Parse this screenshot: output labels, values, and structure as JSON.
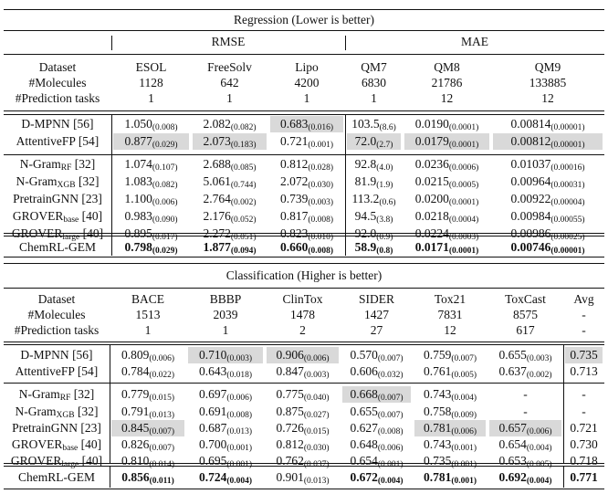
{
  "regression": {
    "title": "Regression (Lower is better)",
    "groups": [
      "RMSE",
      "MAE"
    ],
    "header_labels": [
      "Dataset",
      "#Molecules",
      "#Prediction tasks"
    ],
    "datasets": [
      {
        "name": "ESOL",
        "molecules": "1128",
        "tasks": "1"
      },
      {
        "name": "FreeSolv",
        "molecules": "642",
        "tasks": "1"
      },
      {
        "name": "Lipo",
        "molecules": "4200",
        "tasks": "1"
      },
      {
        "name": "QM7",
        "molecules": "6830",
        "tasks": "1"
      },
      {
        "name": "QM8",
        "molecules": "21786",
        "tasks": "12"
      },
      {
        "name": "QM9",
        "molecules": "133885",
        "tasks": "12"
      }
    ],
    "rows": [
      {
        "method": "D-MPNN",
        "sub": "",
        "ref": "[56]",
        "cells": [
          [
            "1.050",
            "(0.008)"
          ],
          [
            "2.082",
            "(0.082)"
          ],
          [
            "0.683",
            "(0.016)"
          ],
          [
            "103.5",
            "(8.6)"
          ],
          [
            "0.0190",
            "(0.0001)"
          ],
          [
            "0.00814",
            "(0.00001)"
          ]
        ]
      },
      {
        "method": "AttentiveFP",
        "sub": "",
        "ref": "[54]",
        "cells": [
          [
            "0.877",
            "(0.029)"
          ],
          [
            "2.073",
            "(0.183)"
          ],
          [
            "0.721",
            "(0.001)"
          ],
          [
            "72.0",
            "(2.7)"
          ],
          [
            "0.0179",
            "(0.0001)"
          ],
          [
            "0.00812",
            "(0.00001)"
          ]
        ]
      },
      {
        "method": "N-Gram",
        "sub": "RF",
        "ref": "[32]",
        "cells": [
          [
            "1.074",
            "(0.107)"
          ],
          [
            "2.688",
            "(0.085)"
          ],
          [
            "0.812",
            "(0.028)"
          ],
          [
            "92.8",
            "(4.0)"
          ],
          [
            "0.0236",
            "(0.0006)"
          ],
          [
            "0.01037",
            "(0.00016)"
          ]
        ]
      },
      {
        "method": "N-Gram",
        "sub": "XGB",
        "ref": "[32]",
        "cells": [
          [
            "1.083",
            "(0.082)"
          ],
          [
            "5.061",
            "(0.744)"
          ],
          [
            "2.072",
            "(0.030)"
          ],
          [
            "81.9",
            "(1.9)"
          ],
          [
            "0.0215",
            "(0.0005)"
          ],
          [
            "0.00964",
            "(0.00031)"
          ]
        ]
      },
      {
        "method": "PretrainGNN",
        "sub": "",
        "ref": "[23]",
        "cells": [
          [
            "1.100",
            "(0.006)"
          ],
          [
            "2.764",
            "(0.002)"
          ],
          [
            "0.739",
            "(0.003)"
          ],
          [
            "113.2",
            "(0.6)"
          ],
          [
            "0.0200",
            "(0.0001)"
          ],
          [
            "0.00922",
            "(0.00004)"
          ]
        ]
      },
      {
        "method": "GROVER",
        "sub": "base",
        "ref": "[40]",
        "cells": [
          [
            "0.983",
            "(0.090)"
          ],
          [
            "2.176",
            "(0.052)"
          ],
          [
            "0.817",
            "(0.008)"
          ],
          [
            "94.5",
            "(3.8)"
          ],
          [
            "0.0218",
            "(0.0004)"
          ],
          [
            "0.00984",
            "(0.00055)"
          ]
        ]
      },
      {
        "method": "GROVER",
        "sub": "large",
        "ref": "[40]",
        "cells": [
          [
            "0.895",
            "(0.017)"
          ],
          [
            "2.272",
            "(0.051)"
          ],
          [
            "0.823",
            "(0.010)"
          ],
          [
            "92.0",
            "(0.9)"
          ],
          [
            "0.0224",
            "(0.0003)"
          ],
          [
            "0.00986",
            "(0.00025)"
          ]
        ]
      },
      {
        "method": "ChemRL-GEM",
        "sub": "",
        "ref": "",
        "cells": [
          [
            "0.798",
            "(0.029)"
          ],
          [
            "1.877",
            "(0.094)"
          ],
          [
            "0.660",
            "(0.008)"
          ],
          [
            "58.9",
            "(0.8)"
          ],
          [
            "0.0171",
            "(0.0001)"
          ],
          [
            "0.00746",
            "(0.00001)"
          ]
        ]
      }
    ]
  },
  "classification": {
    "title": "Classification (Higher is better)",
    "header_labels": [
      "Dataset",
      "#Molecules",
      "#Prediction tasks"
    ],
    "datasets": [
      {
        "name": "BACE",
        "molecules": "1513",
        "tasks": "1"
      },
      {
        "name": "BBBP",
        "molecules": "2039",
        "tasks": "1"
      },
      {
        "name": "ClinTox",
        "molecules": "1478",
        "tasks": "2"
      },
      {
        "name": "SIDER",
        "molecules": "1427",
        "tasks": "27"
      },
      {
        "name": "Tox21",
        "molecules": "7831",
        "tasks": "12"
      },
      {
        "name": "ToxCast",
        "molecules": "8575",
        "tasks": "617"
      },
      {
        "name": "Avg",
        "molecules": "-",
        "tasks": "-"
      }
    ],
    "rows": [
      {
        "method": "D-MPNN",
        "sub": "",
        "ref": "[56]",
        "cells": [
          [
            "0.809",
            "(0.006)"
          ],
          [
            "0.710",
            "(0.003)"
          ],
          [
            "0.906",
            "(0.006)"
          ],
          [
            "0.570",
            "(0.007)"
          ],
          [
            "0.759",
            "(0.007)"
          ],
          [
            "0.655",
            "(0.003)"
          ],
          [
            "0.735",
            ""
          ]
        ]
      },
      {
        "method": "AttentiveFP",
        "sub": "",
        "ref": "[54]",
        "cells": [
          [
            "0.784",
            "(0.022)"
          ],
          [
            "0.643",
            "(0.018)"
          ],
          [
            "0.847",
            "(0.003)"
          ],
          [
            "0.606",
            "(0.032)"
          ],
          [
            "0.761",
            "(0.005)"
          ],
          [
            "0.637",
            "(0.002)"
          ],
          [
            "0.713",
            ""
          ]
        ]
      },
      {
        "method": "N-Gram",
        "sub": "RF",
        "ref": "[32]",
        "cells": [
          [
            "0.779",
            "(0.015)"
          ],
          [
            "0.697",
            "(0.006)"
          ],
          [
            "0.775",
            "(0.040)"
          ],
          [
            "0.668",
            "(0.007)"
          ],
          [
            "0.743",
            "(0.004)"
          ],
          [
            "-",
            ""
          ],
          [
            "-",
            ""
          ]
        ]
      },
      {
        "method": "N-Gram",
        "sub": "XGB",
        "ref": "[32]",
        "cells": [
          [
            "0.791",
            "(0.013)"
          ],
          [
            "0.691",
            "(0.008)"
          ],
          [
            "0.875",
            "(0.027)"
          ],
          [
            "0.655",
            "(0.007)"
          ],
          [
            "0.758",
            "(0.009)"
          ],
          [
            "-",
            ""
          ],
          [
            "-",
            ""
          ]
        ]
      },
      {
        "method": "PretrainGNN",
        "sub": "",
        "ref": "[23]",
        "cells": [
          [
            "0.845",
            "(0.007)"
          ],
          [
            "0.687",
            "(0.013)"
          ],
          [
            "0.726",
            "(0.015)"
          ],
          [
            "0.627",
            "(0.008)"
          ],
          [
            "0.781",
            "(0.006)"
          ],
          [
            "0.657",
            "(0.006)"
          ],
          [
            "0.721",
            ""
          ]
        ]
      },
      {
        "method": "GROVER",
        "sub": "base",
        "ref": "[40]",
        "cells": [
          [
            "0.826",
            "(0.007)"
          ],
          [
            "0.700",
            "(0.001)"
          ],
          [
            "0.812",
            "(0.030)"
          ],
          [
            "0.648",
            "(0.006)"
          ],
          [
            "0.743",
            "(0.001)"
          ],
          [
            "0.654",
            "(0.004)"
          ],
          [
            "0.730",
            ""
          ]
        ]
      },
      {
        "method": "GROVER",
        "sub": "large",
        "ref": "[40]",
        "cells": [
          [
            "0.810",
            "(0.014)"
          ],
          [
            "0.695",
            "(0.001)"
          ],
          [
            "0.762",
            "(0.037)"
          ],
          [
            "0.654",
            "(0.001)"
          ],
          [
            "0.735",
            "(0.001)"
          ],
          [
            "0.653",
            "(0.005)"
          ],
          [
            "0.718",
            ""
          ]
        ]
      },
      {
        "method": "ChemRL-GEM",
        "sub": "",
        "ref": "",
        "cells": [
          [
            "0.856",
            "(0.011)"
          ],
          [
            "0.724",
            "(0.004)"
          ],
          [
            "0.901",
            "(0.013)"
          ],
          [
            "0.672",
            "(0.004)"
          ],
          [
            "0.781",
            "(0.001)"
          ],
          [
            "0.692",
            "(0.004)"
          ],
          [
            "0.771",
            ""
          ]
        ]
      }
    ]
  }
}
